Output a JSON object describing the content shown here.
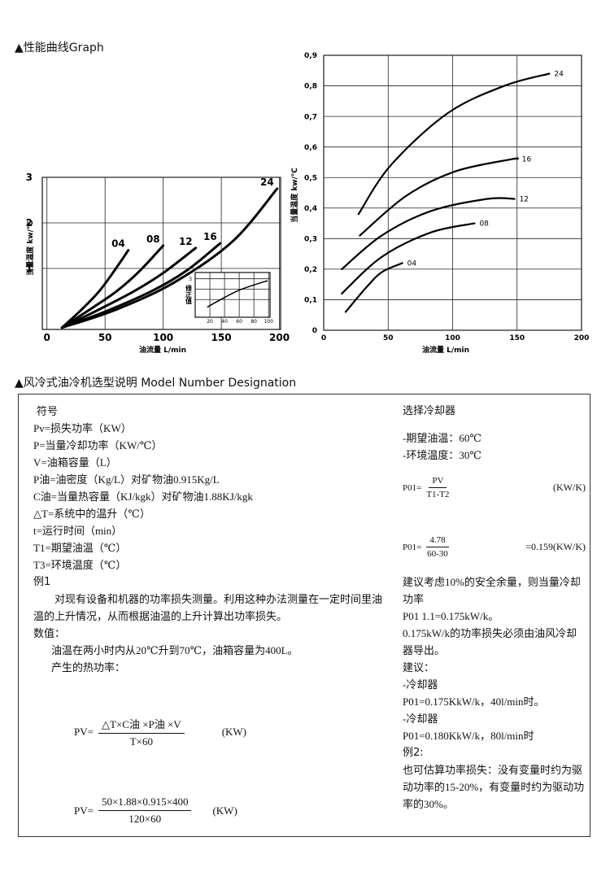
{
  "sections": [
    "▲性能曲线Graph",
    "▲风冷式油冷机选型说明 Model Number Designation"
  ],
  "chart_data": [
    {
      "type": "line",
      "xlabel": "油流量 L/min",
      "ylabel": "当量温度 kw/℃",
      "xlim": [
        -4,
        201
      ],
      "ylim": [
        -0.34,
        3
      ],
      "xticks": [
        0,
        50,
        100,
        150,
        200
      ],
      "yticks": [
        1,
        2,
        3
      ],
      "grid": true,
      "series": [
        {
          "name": "04",
          "color": "#000000",
          "x": [
            13,
            30,
            45,
            58,
            70
          ],
          "values": [
            -0.3,
            0.1,
            0.5,
            0.95,
            1.4
          ]
        },
        {
          "name": "08",
          "color": "#000000",
          "x": [
            13,
            40,
            60,
            80,
            100
          ],
          "values": [
            -0.3,
            0.15,
            0.5,
            0.95,
            1.5
          ]
        },
        {
          "name": "12",
          "color": "#000000",
          "x": [
            13,
            45,
            75,
            100,
            128
          ],
          "values": [
            -0.3,
            0.1,
            0.5,
            0.9,
            1.45
          ]
        },
        {
          "name": "16",
          "color": "#000000",
          "x": [
            13,
            50,
            90,
            120,
            149
          ],
          "values": [
            -0.3,
            0.05,
            0.5,
            0.95,
            1.55
          ]
        },
        {
          "name": "24",
          "color": "#000000",
          "x": [
            13,
            60,
            110,
            160,
            198
          ],
          "values": [
            -0.3,
            0.1,
            0.7,
            1.6,
            2.75
          ]
        }
      ]
    },
    {
      "type": "line",
      "xlabel": "油流量 L/min",
      "ylabel": "当量温度 kw/℃",
      "xlim": [
        0,
        200
      ],
      "ylim": [
        0,
        0.9
      ],
      "xticks": [
        0,
        50,
        100,
        150,
        200
      ],
      "yticks": [
        0,
        {
          "value": 0.1,
          "label": "0,1"
        },
        {
          "value": 0.2,
          "label": "0,2"
        },
        {
          "value": 0.3,
          "label": "0,3"
        },
        {
          "value": 0.4,
          "label": "0,4"
        },
        {
          "value": 0.5,
          "label": "0,5"
        },
        {
          "value": 0.6,
          "label": "0,6"
        },
        {
          "value": 0.7,
          "label": "0,7"
        },
        {
          "value": 0.8,
          "label": "0,8"
        },
        {
          "value": 0.9,
          "label": "0,9"
        }
      ],
      "grid": true,
      "series": [
        {
          "name": "24",
          "color": "#000000",
          "x": [
            27,
            52,
            96,
            140,
            175
          ],
          "values": [
            0.38,
            0.54,
            0.71,
            0.8,
            0.84
          ]
        },
        {
          "name": "16",
          "color": "#000000",
          "x": [
            28,
            64,
            102,
            146,
            150
          ],
          "values": [
            0.31,
            0.44,
            0.52,
            0.56,
            0.56
          ]
        },
        {
          "name": "12",
          "color": "#000000",
          "x": [
            14,
            45,
            83,
            127,
            148
          ],
          "values": [
            0.2,
            0.31,
            0.39,
            0.43,
            0.43
          ]
        },
        {
          "name": "08",
          "color": "#000000",
          "x": [
            14,
            45,
            83,
            117
          ],
          "values": [
            0.12,
            0.24,
            0.32,
            0.35
          ]
        },
        {
          "name": "04",
          "color": "#000000",
          "x": [
            17,
            33,
            45,
            61
          ],
          "values": [
            0.06,
            0.14,
            0.19,
            0.22
          ]
        }
      ]
    },
    {
      "type": "line",
      "ylabel": "修正值",
      "xlim": [
        0,
        102
      ],
      "ylim": [
        -0.7,
        3.6
      ],
      "xticks": [
        20,
        40,
        60,
        80,
        100
      ],
      "yticks": [
        1,
        2,
        3
      ],
      "grid": true,
      "series": [
        {
          "color": "#000000",
          "x": [
            17,
            40,
            60,
            80,
            98
          ],
          "values": [
            0.3,
            1.2,
            1.9,
            2.4,
            2.8
          ]
        }
      ]
    }
  ],
  "designation": {
    "left": {
      "heading": "符号",
      "definitions": [
        "Pv=损失功率（KW）",
        "P=当量冷却功率（KW/℃）",
        "V=油箱容量（L）",
        "P油=油密度（Kg/L）对矿物油0.915Kg/L",
        "C油=当量热容量（KJ/kgk）对矿物油1.88KJ/kgk",
        "△T=系统中的温升（℃）",
        "t=运行时间（min）",
        "T1=期望油温（℃）",
        "T3=环境温度（℃）"
      ],
      "example_title": "例1",
      "paragraphs": [
        "对现有设备和机器的功率损失测量。利用这种办法测量在一定时间里油温的上升情况，从而根据油温的上升计算出功率损失。",
        "数值：",
        "油温在两小时内从20℃升到70℃，油箱容量为400L。",
        "产生的热功率："
      ],
      "formula1": {
        "lhs": "PV=",
        "numerator": "△T×C油 ×P油 ×V",
        "denominator": "T×60",
        "unit": "(KW)"
      },
      "formula2": {
        "lhs": "PV=",
        "numerator": "50×1.88×0.915×400",
        "denominator": "120×60",
        "unit": "(KW)"
      }
    },
    "right": {
      "heading": "选择冷却器",
      "conditions": [
        "-期望油温：60℃",
        "-环境温度：30℃"
      ],
      "formula1": {
        "lhs": "P01=",
        "numerator": "PV",
        "denominator": "T1-T2",
        "unit": "(KW/K)"
      },
      "formula2": {
        "lhs": "P01=",
        "numerator": "4.78",
        "denominator": "60-30",
        "result": "=0.159(KW/K)"
      },
      "lines": [
        "建议考虑10%的安全余量，则当量冷却功率",
        "P01 1.1=0.175kW/k。",
        "0.175kW/k的功率损失必须由油风冷却器导出。",
        "建议：",
        "-冷却器",
        "P01=0.175KkW/k，40l/min时。",
        "-冷却器",
        "P01=0.180KkW/k，80l/min时"
      ],
      "example_title": "例2:",
      "example_text": "也可估算功率损失：没有变量时约为驱动功率的15-20%，有变量时约为驱动功率的30%。"
    }
  }
}
